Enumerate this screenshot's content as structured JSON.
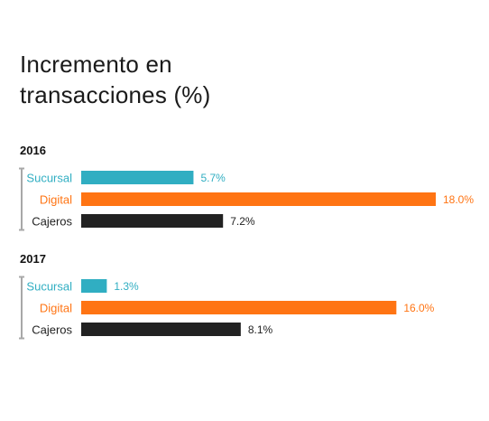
{
  "title_lines": [
    "Incremento en",
    "transacciones (%)"
  ],
  "colors": {
    "Sucursal": "#30aec2",
    "Digital": "#ff7413",
    "Cajeros": "#222222",
    "bracket": "#a8a8a8"
  },
  "chart_data": {
    "type": "bar",
    "orientation": "horizontal",
    "title": "Incremento en transacciones (%)",
    "categories": [
      "Sucursal",
      "Digital",
      "Cajeros"
    ],
    "groups": [
      {
        "name": "2016",
        "values": [
          5.7,
          18.0,
          7.2
        ],
        "labels": [
          "5.7%",
          "18.0%",
          "7.2%"
        ]
      },
      {
        "name": "2017",
        "values": [
          1.3,
          16.0,
          8.1
        ],
        "labels": [
          "1.3%",
          "16.0%",
          "8.1%"
        ]
      }
    ],
    "xlim": [
      0,
      18.0
    ],
    "grid": false,
    "legend": "none"
  }
}
